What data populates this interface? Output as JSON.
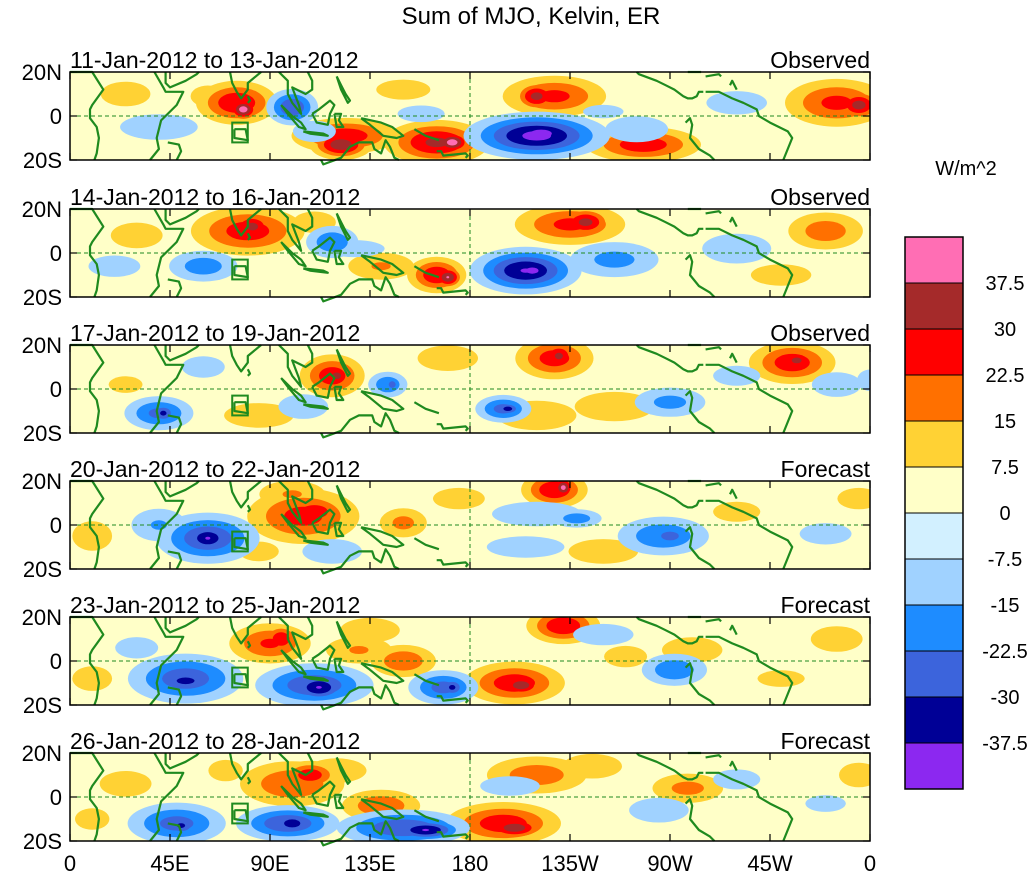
{
  "chart_data": {
    "type": "heatmap",
    "title": "Sum of MJO, Kelvin, ER",
    "colorbar": {
      "units": "W/m^2",
      "levels": [
        "37.5",
        "30",
        "22.5",
        "15",
        "7.5",
        "0",
        "-7.5",
        "-15",
        "-22.5",
        "-30",
        "-37.5"
      ],
      "colors": [
        "#ff6eb4",
        "#a52a2a",
        "#ff0000",
        "#ff7000",
        "#ffd234",
        "#ffffc8",
        "#d2f0ff",
        "#a0d2ff",
        "#1e8cff",
        "#3c64dc",
        "#000096",
        "#8c28f0"
      ]
    },
    "x_ticks": [
      "0",
      "45E",
      "90E",
      "135E",
      "180",
      "135W",
      "90W",
      "45W",
      "0"
    ],
    "y_ticks": [
      "20N",
      "0",
      "20S"
    ],
    "panels": [
      {
        "date_range": "11-Jan-2012 to 13-Jan-2012",
        "status": "Observed",
        "blobs": [
          [
            75,
            6,
            11,
            6,
            30
          ],
          [
            78,
            3,
            4,
            3,
            42
          ],
          [
            100,
            4,
            7,
            5,
            -30
          ],
          [
            158,
            1,
            14,
            5,
            -10
          ],
          [
            124,
            -9,
            15,
            5,
            28
          ],
          [
            122,
            -13,
            8,
            4,
            36
          ],
          [
            165,
            -12,
            14,
            6,
            32
          ],
          [
            172,
            -12,
            5,
            3,
            42
          ],
          [
            210,
            -9,
            18,
            6,
            -40
          ],
          [
            212,
            -8,
            8,
            3,
            -45
          ],
          [
            218,
            9,
            15,
            6,
            25
          ],
          [
            210,
            9,
            6,
            4,
            33
          ],
          [
            258,
            -13,
            16,
            5,
            28
          ],
          [
            255,
            -6,
            12,
            5,
            -15
          ],
          [
            345,
            6,
            15,
            7,
            25
          ],
          [
            355,
            5,
            6,
            4,
            34
          ],
          [
            40,
            -5,
            18,
            6,
            -12
          ],
          [
            62,
            9,
            8,
            5,
            12
          ],
          [
            300,
            6,
            18,
            7,
            -10
          ],
          [
            110,
            -7,
            10,
            5,
            -12
          ],
          [
            25,
            10,
            10,
            5,
            14
          ],
          [
            240,
            2,
            12,
            4,
            -10
          ],
          [
            150,
            12,
            16,
            6,
            10
          ]
        ]
      },
      {
        "date_range": "14-Jan-2012 to 16-Jan-2012",
        "status": "Observed",
        "blobs": [
          [
            80,
            10,
            16,
            7,
            27
          ],
          [
            82,
            12,
            6,
            4,
            33
          ],
          [
            60,
            -6,
            11,
            5,
            -20
          ],
          [
            118,
            5,
            8,
            5,
            -22
          ],
          [
            128,
            2,
            14,
            4,
            -12
          ],
          [
            165,
            -10,
            8,
            5,
            30
          ],
          [
            170,
            -11,
            4,
            3,
            38
          ],
          [
            205,
            -8,
            14,
            6,
            -38
          ],
          [
            208,
            -8,
            6,
            3,
            -42
          ],
          [
            225,
            13,
            16,
            6,
            25
          ],
          [
            232,
            14,
            7,
            4,
            33
          ],
          [
            245,
            -3,
            15,
            6,
            -18
          ],
          [
            340,
            10,
            12,
            6,
            20
          ],
          [
            30,
            8,
            12,
            6,
            12
          ],
          [
            140,
            -6,
            12,
            5,
            16
          ],
          [
            20,
            -6,
            12,
            5,
            -12
          ],
          [
            300,
            2,
            16,
            7,
            -12
          ],
          [
            320,
            -10,
            14,
            5,
            12
          ],
          [
            110,
            14,
            10,
            5,
            12
          ]
        ]
      },
      {
        "date_range": "17-Jan-2012 to 19-Jan-2012",
        "status": "Observed",
        "blobs": [
          [
            118,
            6,
            9,
            6,
            28
          ],
          [
            120,
            6,
            4,
            3,
            34
          ],
          [
            105,
            -8,
            10,
            5,
            -14
          ],
          [
            143,
            2,
            6,
            4,
            -22
          ],
          [
            145,
            2,
            2,
            2,
            -30
          ],
          [
            195,
            -9,
            8,
            4,
            -26
          ],
          [
            197,
            -9,
            4,
            2,
            -34
          ],
          [
            218,
            14,
            11,
            6,
            27
          ],
          [
            220,
            15,
            5,
            4,
            32
          ],
          [
            325,
            12,
            12,
            6,
            28
          ],
          [
            327,
            13,
            5,
            3,
            33
          ],
          [
            40,
            -11,
            10,
            5,
            -25
          ],
          [
            42,
            -11,
            4,
            3,
            -32
          ],
          [
            60,
            10,
            10,
            5,
            -12
          ],
          [
            270,
            -6,
            12,
            5,
            -18
          ],
          [
            245,
            -8,
            16,
            6,
            14
          ],
          [
            210,
            -12,
            16,
            6,
            14
          ],
          [
            345,
            2,
            10,
            5,
            -14
          ],
          [
            170,
            14,
            14,
            6,
            12
          ],
          [
            85,
            -12,
            14,
            5,
            14
          ],
          [
            300,
            6,
            14,
            6,
            -10
          ],
          [
            25,
            2,
            10,
            5,
            10
          ],
          [
            360,
            4,
            6,
            5,
            -12
          ]
        ]
      },
      {
        "date_range": "20-Jan-2012 to 22-Jan-2012",
        "status": "Forecast",
        "blobs": [
          [
            62,
            -6,
            14,
            7,
            -30
          ],
          [
            62,
            -6,
            7,
            4,
            -38
          ],
          [
            40,
            0,
            10,
            6,
            -16
          ],
          [
            105,
            4,
            16,
            8,
            26
          ],
          [
            110,
            6,
            8,
            4,
            30
          ],
          [
            100,
            14,
            12,
            5,
            16
          ],
          [
            118,
            -12,
            12,
            5,
            -14
          ],
          [
            150,
            1,
            8,
            5,
            18
          ],
          [
            218,
            16,
            9,
            5,
            30
          ],
          [
            222,
            17,
            3,
            3,
            40
          ],
          [
            210,
            5,
            18,
            5,
            -14
          ],
          [
            228,
            3,
            8,
            3,
            -20
          ],
          [
            267,
            -5,
            14,
            6,
            -22
          ],
          [
            270,
            -5,
            6,
            3,
            -28
          ],
          [
            240,
            -12,
            14,
            5,
            14
          ],
          [
            205,
            -10,
            18,
            5,
            -12
          ],
          [
            10,
            -5,
            8,
            6,
            14
          ],
          [
            340,
            -4,
            12,
            5,
            -12
          ],
          [
            175,
            12,
            12,
            5,
            12
          ],
          [
            85,
            -12,
            8,
            4,
            14
          ],
          [
            300,
            6,
            14,
            6,
            10
          ],
          [
            355,
            12,
            10,
            5,
            12
          ]
        ]
      },
      {
        "date_range": "23-Jan-2012 to 25-Jan-2012",
        "status": "Forecast",
        "blobs": [
          [
            52,
            -8,
            16,
            7,
            -28
          ],
          [
            52,
            -9,
            8,
            3,
            -34
          ],
          [
            110,
            -11,
            16,
            6,
            -30
          ],
          [
            112,
            -12,
            8,
            4,
            -38
          ],
          [
            90,
            8,
            12,
            6,
            24
          ],
          [
            95,
            10,
            5,
            4,
            30
          ],
          [
            130,
            5,
            12,
            5,
            16
          ],
          [
            150,
            0,
            10,
            5,
            22
          ],
          [
            168,
            -12,
            10,
            5,
            -26
          ],
          [
            172,
            -12,
            4,
            3,
            -32
          ],
          [
            200,
            -10,
            14,
            6,
            28
          ],
          [
            203,
            -11,
            6,
            3,
            36
          ],
          [
            222,
            16,
            10,
            5,
            30
          ],
          [
            272,
            -4,
            10,
            5,
            -22
          ],
          [
            250,
            2,
            10,
            5,
            12
          ],
          [
            280,
            5,
            14,
            6,
            12
          ],
          [
            10,
            -8,
            8,
            5,
            14
          ],
          [
            30,
            6,
            10,
            5,
            -12
          ],
          [
            240,
            12,
            14,
            5,
            -12
          ],
          [
            345,
            10,
            12,
            6,
            12
          ],
          [
            135,
            14,
            12,
            5,
            14
          ],
          [
            320,
            -8,
            14,
            5,
            10
          ]
        ]
      },
      {
        "date_range": "26-Jan-2012 to 28-Jan-2012",
        "status": "Forecast",
        "blobs": [
          [
            48,
            -12,
            14,
            6,
            -26
          ],
          [
            50,
            -13,
            5,
            3,
            -32
          ],
          [
            98,
            -12,
            14,
            5,
            -30
          ],
          [
            100,
            -12,
            6,
            3,
            -36
          ],
          [
            150,
            -14,
            18,
            5,
            -30
          ],
          [
            160,
            -15,
            10,
            3,
            -38
          ],
          [
            100,
            6,
            16,
            7,
            22
          ],
          [
            108,
            10,
            8,
            4,
            28
          ],
          [
            140,
            -4,
            12,
            5,
            22
          ],
          [
            120,
            12,
            12,
            5,
            14
          ],
          [
            195,
            -12,
            16,
            6,
            28
          ],
          [
            200,
            -14,
            8,
            3,
            36
          ],
          [
            210,
            10,
            16,
            6,
            20
          ],
          [
            198,
            5,
            12,
            4,
            -14
          ],
          [
            278,
            4,
            12,
            5,
            18
          ],
          [
            265,
            -6,
            12,
            5,
            -14
          ],
          [
            25,
            6,
            12,
            6,
            12
          ],
          [
            10,
            -10,
            8,
            5,
            12
          ],
          [
            340,
            -3,
            12,
            5,
            -10
          ],
          [
            235,
            14,
            12,
            5,
            14
          ],
          [
            300,
            8,
            14,
            6,
            -10
          ],
          [
            355,
            10,
            8,
            5,
            14
          ],
          [
            70,
            12,
            8,
            5,
            12
          ]
        ]
      }
    ]
  }
}
